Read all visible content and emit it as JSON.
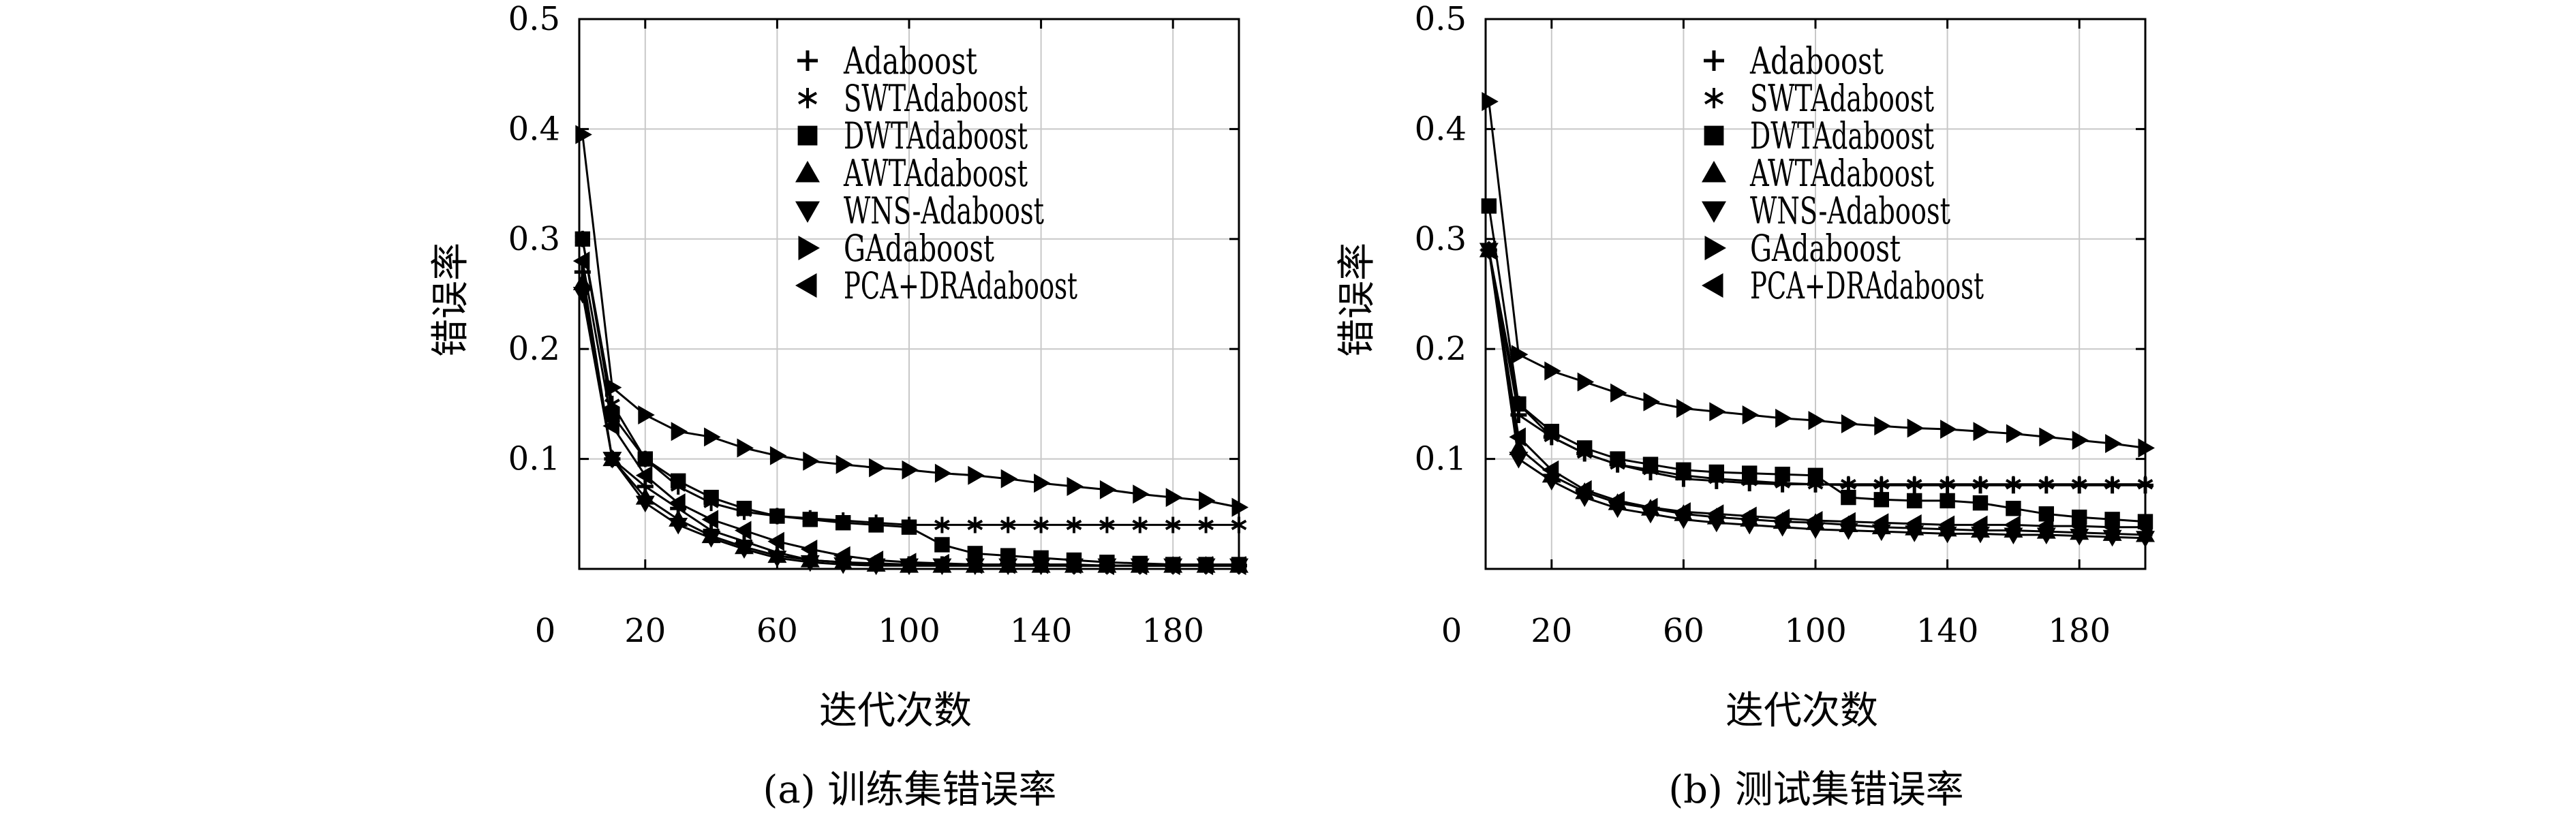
{
  "panels": [
    {
      "caption": "(a) 训练集错误率",
      "xlabel": "迭代次数",
      "ylabel": "错误率"
    },
    {
      "caption": "(b) 测试集错误率",
      "xlabel": "迭代次数",
      "ylabel": "错误率"
    }
  ],
  "chart_data": [
    {
      "type": "line",
      "caption": "(a) 训练集错误率",
      "xlabel": "迭代次数",
      "ylabel": "错误率",
      "xlim": [
        0,
        200
      ],
      "ylim": [
        0,
        0.5
      ],
      "xticks": [
        0,
        20,
        60,
        100,
        140,
        180
      ],
      "yticks": [
        0.1,
        0.2,
        0.3,
        0.4,
        0.5
      ],
      "grid": true,
      "legend": "top-right",
      "x": [
        1,
        10,
        20,
        30,
        40,
        50,
        60,
        70,
        80,
        90,
        100,
        110,
        120,
        130,
        140,
        150,
        160,
        170,
        180,
        190,
        200
      ],
      "series": [
        {
          "name": "Adaboost",
          "marker": "plus",
          "values": [
            0.27,
            0.1,
            0.075,
            0.055,
            0.035,
            0.025,
            0.015,
            0.008,
            0.006,
            0.005,
            0.004,
            0.004,
            0.004,
            0.004,
            0.004,
            0.003,
            0.003,
            0.003,
            0.003,
            0.003,
            0.003
          ]
        },
        {
          "name": "SWTAdaboost",
          "marker": "asterisk",
          "values": [
            0.3,
            0.15,
            0.1,
            0.075,
            0.06,
            0.052,
            0.048,
            0.046,
            0.044,
            0.042,
            0.04,
            0.04,
            0.04,
            0.04,
            0.04,
            0.04,
            0.04,
            0.04,
            0.04,
            0.04,
            0.04
          ]
        },
        {
          "name": "DWTAdaboost",
          "marker": "square",
          "values": [
            0.3,
            0.14,
            0.1,
            0.08,
            0.065,
            0.055,
            0.048,
            0.045,
            0.042,
            0.04,
            0.038,
            0.022,
            0.014,
            0.012,
            0.01,
            0.008,
            0.006,
            0.005,
            0.004,
            0.004,
            0.004
          ]
        },
        {
          "name": "AWTAdaboost",
          "marker": "triangle-up",
          "values": [
            0.26,
            0.1,
            0.065,
            0.045,
            0.03,
            0.02,
            0.012,
            0.008,
            0.006,
            0.004,
            0.003,
            0.003,
            0.003,
            0.003,
            0.003,
            0.003,
            0.003,
            0.003,
            0.003,
            0.003,
            0.003
          ]
        },
        {
          "name": "WNS-Adaboost",
          "marker": "triangle-down",
          "values": [
            0.25,
            0.1,
            0.06,
            0.04,
            0.028,
            0.018,
            0.01,
            0.006,
            0.004,
            0.003,
            0.003,
            0.003,
            0.003,
            0.003,
            0.003,
            0.003,
            0.003,
            0.003,
            0.003,
            0.003,
            0.003
          ]
        },
        {
          "name": "GAdaboost",
          "marker": "triangle-right",
          "values": [
            0.395,
            0.165,
            0.14,
            0.125,
            0.12,
            0.11,
            0.103,
            0.098,
            0.095,
            0.092,
            0.09,
            0.087,
            0.085,
            0.082,
            0.078,
            0.075,
            0.072,
            0.068,
            0.065,
            0.062,
            0.056
          ]
        },
        {
          "name": "PCA+DRAdaboost",
          "marker": "triangle-left",
          "values": [
            0.28,
            0.13,
            0.085,
            0.06,
            0.045,
            0.035,
            0.025,
            0.018,
            0.012,
            0.008,
            0.006,
            0.005,
            0.004,
            0.004,
            0.004,
            0.004,
            0.003,
            0.003,
            0.003,
            0.003,
            0.003
          ]
        }
      ]
    },
    {
      "type": "line",
      "caption": "(b) 测试集错误率",
      "xlabel": "迭代次数",
      "ylabel": "错误率",
      "xlim": [
        0,
        200
      ],
      "ylim": [
        0,
        0.5
      ],
      "xticks": [
        0,
        20,
        60,
        100,
        140,
        180
      ],
      "yticks": [
        0.1,
        0.2,
        0.3,
        0.4,
        0.5
      ],
      "grid": true,
      "legend": "top-right",
      "x": [
        1,
        10,
        20,
        30,
        40,
        50,
        60,
        70,
        80,
        90,
        100,
        110,
        120,
        130,
        140,
        150,
        160,
        170,
        180,
        190,
        200
      ],
      "series": [
        {
          "name": "Adaboost",
          "marker": "plus",
          "values": [
            0.29,
            0.14,
            0.12,
            0.105,
            0.095,
            0.088,
            0.082,
            0.08,
            0.078,
            0.077,
            0.077,
            0.076,
            0.076,
            0.076,
            0.076,
            0.076,
            0.076,
            0.076,
            0.076,
            0.076,
            0.076
          ]
        },
        {
          "name": "SWTAdaboost",
          "marker": "asterisk",
          "values": [
            0.29,
            0.15,
            0.12,
            0.105,
            0.095,
            0.09,
            0.085,
            0.082,
            0.08,
            0.078,
            0.077,
            0.077,
            0.077,
            0.077,
            0.077,
            0.077,
            0.077,
            0.077,
            0.077,
            0.077,
            0.077
          ]
        },
        {
          "name": "DWTAdaboost",
          "marker": "square",
          "values": [
            0.33,
            0.15,
            0.125,
            0.11,
            0.1,
            0.095,
            0.09,
            0.088,
            0.087,
            0.086,
            0.085,
            0.065,
            0.063,
            0.062,
            0.062,
            0.06,
            0.055,
            0.05,
            0.047,
            0.045,
            0.043
          ]
        },
        {
          "name": "AWTAdaboost",
          "marker": "triangle-up",
          "values": [
            0.29,
            0.11,
            0.085,
            0.07,
            0.06,
            0.055,
            0.05,
            0.047,
            0.045,
            0.043,
            0.042,
            0.04,
            0.038,
            0.037,
            0.036,
            0.035,
            0.035,
            0.034,
            0.033,
            0.032,
            0.031
          ]
        },
        {
          "name": "WNS-Adaboost",
          "marker": "triangle-down",
          "values": [
            0.29,
            0.1,
            0.08,
            0.065,
            0.055,
            0.05,
            0.045,
            0.042,
            0.04,
            0.038,
            0.036,
            0.035,
            0.034,
            0.033,
            0.032,
            0.032,
            0.031,
            0.031,
            0.03,
            0.029,
            0.028
          ]
        },
        {
          "name": "GAdaboost",
          "marker": "triangle-right",
          "values": [
            0.425,
            0.195,
            0.18,
            0.17,
            0.16,
            0.152,
            0.146,
            0.143,
            0.14,
            0.137,
            0.135,
            0.132,
            0.13,
            0.128,
            0.127,
            0.125,
            0.123,
            0.12,
            0.117,
            0.114,
            0.11
          ]
        },
        {
          "name": "PCA+DRAdaboost",
          "marker": "triangle-left",
          "values": [
            0.29,
            0.12,
            0.09,
            0.072,
            0.062,
            0.056,
            0.052,
            0.05,
            0.048,
            0.046,
            0.044,
            0.043,
            0.042,
            0.041,
            0.04,
            0.04,
            0.04,
            0.039,
            0.039,
            0.038,
            0.038
          ]
        }
      ]
    }
  ]
}
